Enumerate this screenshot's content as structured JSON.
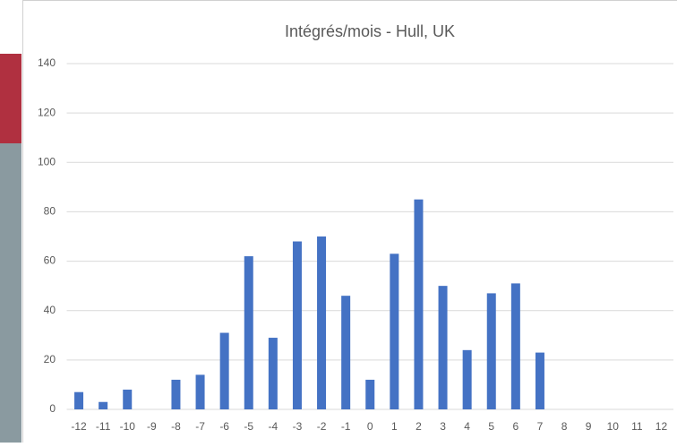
{
  "chart_data": {
    "type": "bar",
    "title": "Intégrés/mois - Hull, UK",
    "categories": [
      "-12",
      "-11",
      "-10",
      "-9",
      "-8",
      "-7",
      "-6",
      "-5",
      "-4",
      "-3",
      "-2",
      "-1",
      "0",
      "1",
      "2",
      "3",
      "4",
      "5",
      "6",
      "7",
      "8",
      "9",
      "10",
      "11",
      "12"
    ],
    "values": [
      7,
      3,
      8,
      0,
      12,
      14,
      31,
      62,
      29,
      68,
      70,
      46,
      12,
      63,
      85,
      50,
      24,
      47,
      51,
      23,
      0,
      0,
      0,
      0,
      0
    ],
    "color": "#4472c4",
    "ylim": [
      0,
      140
    ],
    "yticks": [
      0,
      20,
      40,
      60,
      80,
      100,
      120,
      140
    ],
    "grid": true
  }
}
